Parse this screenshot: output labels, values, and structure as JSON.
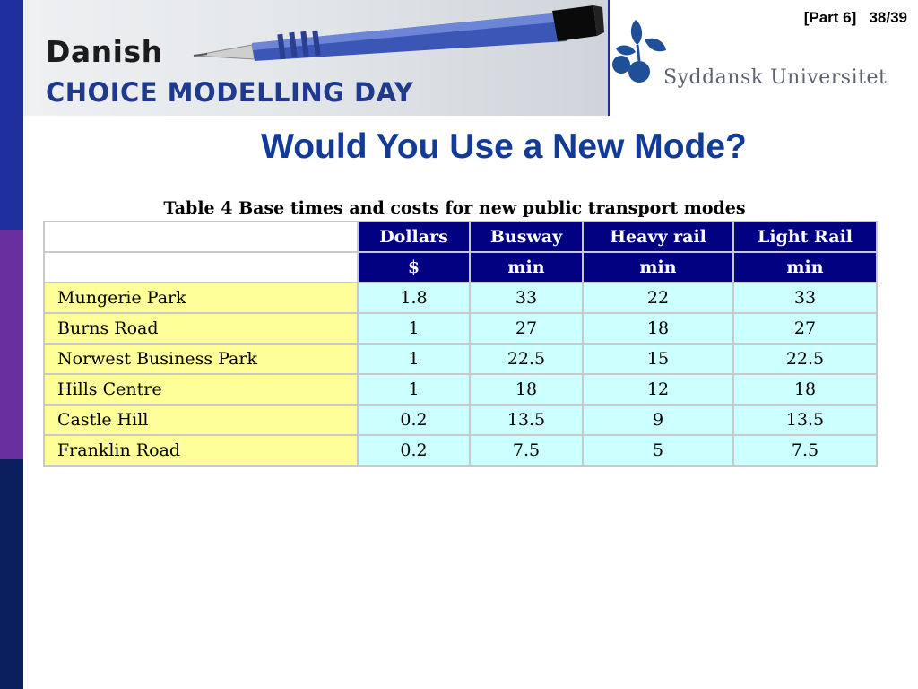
{
  "header": {
    "banner_line1": "Danish",
    "banner_line2": "CHOICE MODELLING DAY",
    "university": "Syddansk Universitet",
    "part": "[Part 6]",
    "page": "38/39"
  },
  "slide": {
    "title": "Would You Use a New Mode?",
    "table_caption": "Table 4 Base times and costs for new public transport modes"
  },
  "table": {
    "columns": [
      "Dollars",
      "Busway",
      "Heavy rail",
      "Light Rail"
    ],
    "units": [
      "$",
      "min",
      "min",
      "min"
    ],
    "rows": [
      {
        "name": "Mungerie Park",
        "values": [
          "1.8",
          "33",
          "22",
          "33"
        ]
      },
      {
        "name": "Burns Road",
        "values": [
          "1",
          "27",
          "18",
          "27"
        ]
      },
      {
        "name": "Norwest Business Park",
        "values": [
          "1",
          "22.5",
          "15",
          "22.5"
        ]
      },
      {
        "name": "Hills Centre",
        "values": [
          "1",
          "18",
          "12",
          "18"
        ]
      },
      {
        "name": "Castle Hill",
        "values": [
          "0.2",
          "13.5",
          "9",
          "13.5"
        ]
      },
      {
        "name": "Franklin Road",
        "values": [
          "0.2",
          "7.5",
          "5",
          "7.5"
        ]
      }
    ]
  },
  "colors": {
    "header_fill": "#000080",
    "row_label_fill": "#ffff99",
    "value_fill": "#ccffff",
    "title": "#123a97"
  }
}
